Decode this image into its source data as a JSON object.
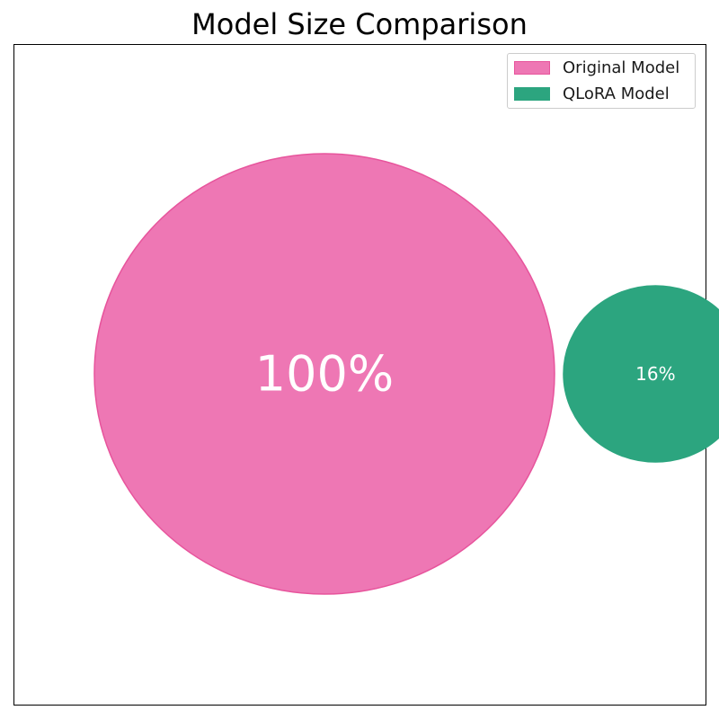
{
  "chart_data": {
    "type": "bubble",
    "title": "Model Size Comparison",
    "xlabel": "",
    "ylabel": "",
    "grid": false,
    "axes_ticks": false,
    "legend_position": "top-right",
    "series": [
      {
        "name": "Original Model",
        "value": 100,
        "label": "100%",
        "color": "#ee77b4",
        "edge_color": "#e7549c"
      },
      {
        "name": "QLoRA Model",
        "value": 16,
        "label": "16%",
        "color": "#2ca57f",
        "edge_color": "#2ca57f"
      }
    ]
  }
}
